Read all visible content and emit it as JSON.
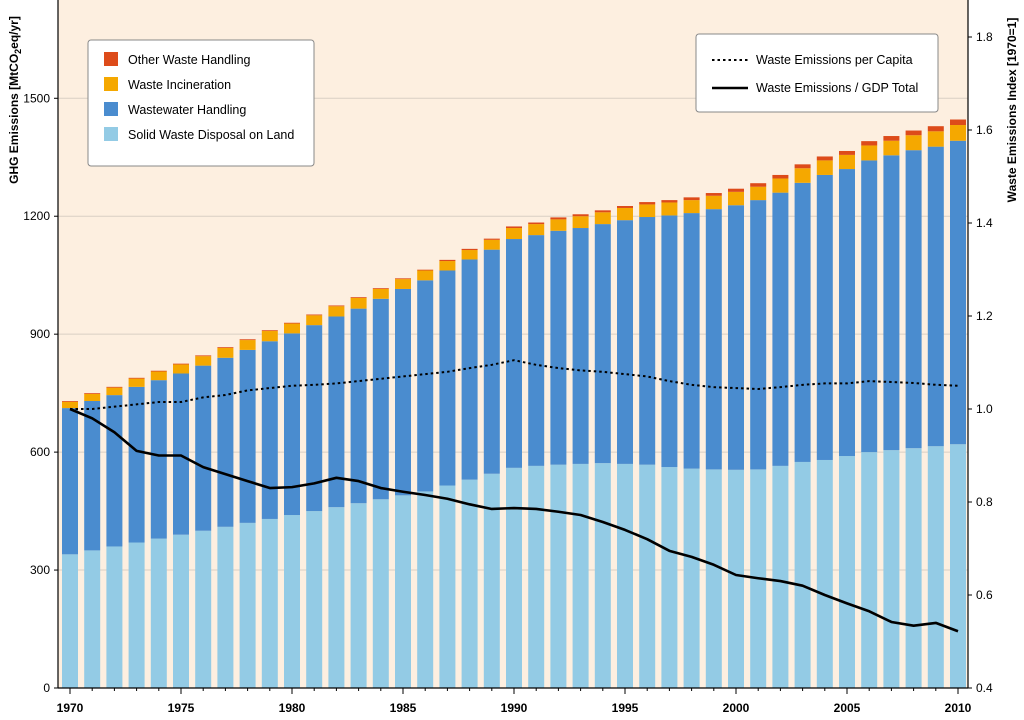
{
  "chart_data": {
    "type": "bar",
    "stacked": true,
    "years": [
      1970,
      1971,
      1972,
      1973,
      1974,
      1975,
      1976,
      1977,
      1978,
      1979,
      1980,
      1981,
      1982,
      1983,
      1984,
      1985,
      1986,
      1987,
      1988,
      1989,
      1990,
      1991,
      1992,
      1993,
      1994,
      1995,
      1996,
      1997,
      1998,
      1999,
      2000,
      2001,
      2002,
      2003,
      2004,
      2005,
      2006,
      2007,
      2008,
      2009,
      2010
    ],
    "x_tick_labels": [
      "1970",
      "1975",
      "1980",
      "1985",
      "1990",
      "1995",
      "2000",
      "2005",
      "2010"
    ],
    "y_left": {
      "label_prefix": "GHG Emissions [MtCO",
      "label_sub": "2",
      "label_suffix": "eq/yr]",
      "ticks": [
        "0",
        "300",
        "600",
        "900",
        "1200",
        "1500"
      ],
      "range": [
        0,
        1750
      ]
    },
    "y_right": {
      "label": "Waste Emissions Index [1970=1]",
      "ticks": [
        "0.4",
        "0.6",
        "0.8",
        "1.0",
        "1.2",
        "1.4",
        "1.6",
        "1.8"
      ],
      "range": [
        0.4,
        1.9
      ]
    },
    "series": [
      {
        "name": "Solid Waste Disposal on Land",
        "color": "#93cbe5",
        "values": [
          340,
          350,
          360,
          370,
          380,
          390,
          400,
          410,
          420,
          430,
          440,
          450,
          460,
          470,
          480,
          490,
          500,
          515,
          530,
          545,
          560,
          565,
          568,
          570,
          572,
          570,
          568,
          562,
          558,
          556,
          555,
          556,
          565,
          575,
          580,
          590,
          600,
          605,
          610,
          615,
          620
        ]
      },
      {
        "name": "Wastewater Handling",
        "color": "#4a8ccf",
        "values": [
          372,
          380,
          385,
          396,
          403,
          410,
          420,
          430,
          440,
          452,
          462,
          473,
          485,
          495,
          510,
          525,
          537,
          547,
          560,
          570,
          582,
          587,
          595,
          600,
          608,
          620,
          630,
          640,
          650,
          662,
          673,
          685,
          695,
          710,
          725,
          730,
          742,
          750,
          758,
          762,
          772
        ]
      },
      {
        "name": "Waste Incineration",
        "color": "#f5a800",
        "values": [
          16,
          18,
          19,
          21,
          22,
          23,
          24,
          25,
          25,
          26,
          25,
          25,
          26,
          27,
          25,
          25,
          25,
          24,
          24,
          25,
          28,
          28,
          29,
          30,
          30,
          31,
          32,
          33,
          33,
          34,
          34,
          34,
          36,
          37,
          37,
          36,
          38,
          37,
          38,
          39,
          40
        ]
      },
      {
        "name": "Other Waste Handling",
        "color": "#dd4b1a",
        "values": [
          2,
          2,
          2,
          2,
          2,
          2,
          2,
          2,
          2,
          2,
          2,
          2,
          2,
          2,
          2,
          2,
          2,
          3,
          3,
          3,
          4,
          4,
          5,
          5,
          5,
          5,
          6,
          6,
          7,
          7,
          8,
          9,
          9,
          10,
          10,
          10,
          11,
          12,
          12,
          13,
          14
        ]
      }
    ],
    "lines": [
      {
        "name": "Waste Emissions per Capita",
        "style": "dotted",
        "color": "#000000",
        "values": [
          1.0,
          1.0,
          1.005,
          1.01,
          1.015,
          1.015,
          1.025,
          1.03,
          1.04,
          1.045,
          1.05,
          1.052,
          1.055,
          1.06,
          1.065,
          1.07,
          1.075,
          1.08,
          1.088,
          1.095,
          1.105,
          1.095,
          1.088,
          1.083,
          1.08,
          1.075,
          1.07,
          1.06,
          1.052,
          1.047,
          1.045,
          1.043,
          1.047,
          1.052,
          1.055,
          1.055,
          1.06,
          1.058,
          1.056,
          1.052,
          1.05
        ]
      },
      {
        "name": "Waste Emissions / GDP Total",
        "style": "solid",
        "color": "#000000",
        "values": [
          1.0,
          0.98,
          0.95,
          0.91,
          0.9,
          0.9,
          0.875,
          0.86,
          0.845,
          0.83,
          0.832,
          0.84,
          0.852,
          0.845,
          0.83,
          0.822,
          0.815,
          0.807,
          0.795,
          0.785,
          0.787,
          0.785,
          0.779,
          0.772,
          0.757,
          0.74,
          0.72,
          0.695,
          0.682,
          0.665,
          0.643,
          0.636,
          0.63,
          0.62,
          0.6,
          0.582,
          0.565,
          0.542,
          0.534,
          0.54,
          0.522
        ]
      }
    ],
    "legend_bars": [
      "Other Waste Handling",
      "Waste Incineration",
      "Wastewater Handling",
      "Solid Waste Disposal on Land"
    ],
    "legend_lines": [
      "Waste Emissions per Capita",
      "Waste Emissions / GDP Total"
    ],
    "colors": {
      "plot_background": "#fdefe0",
      "gridline": "#d9cfc4"
    }
  }
}
